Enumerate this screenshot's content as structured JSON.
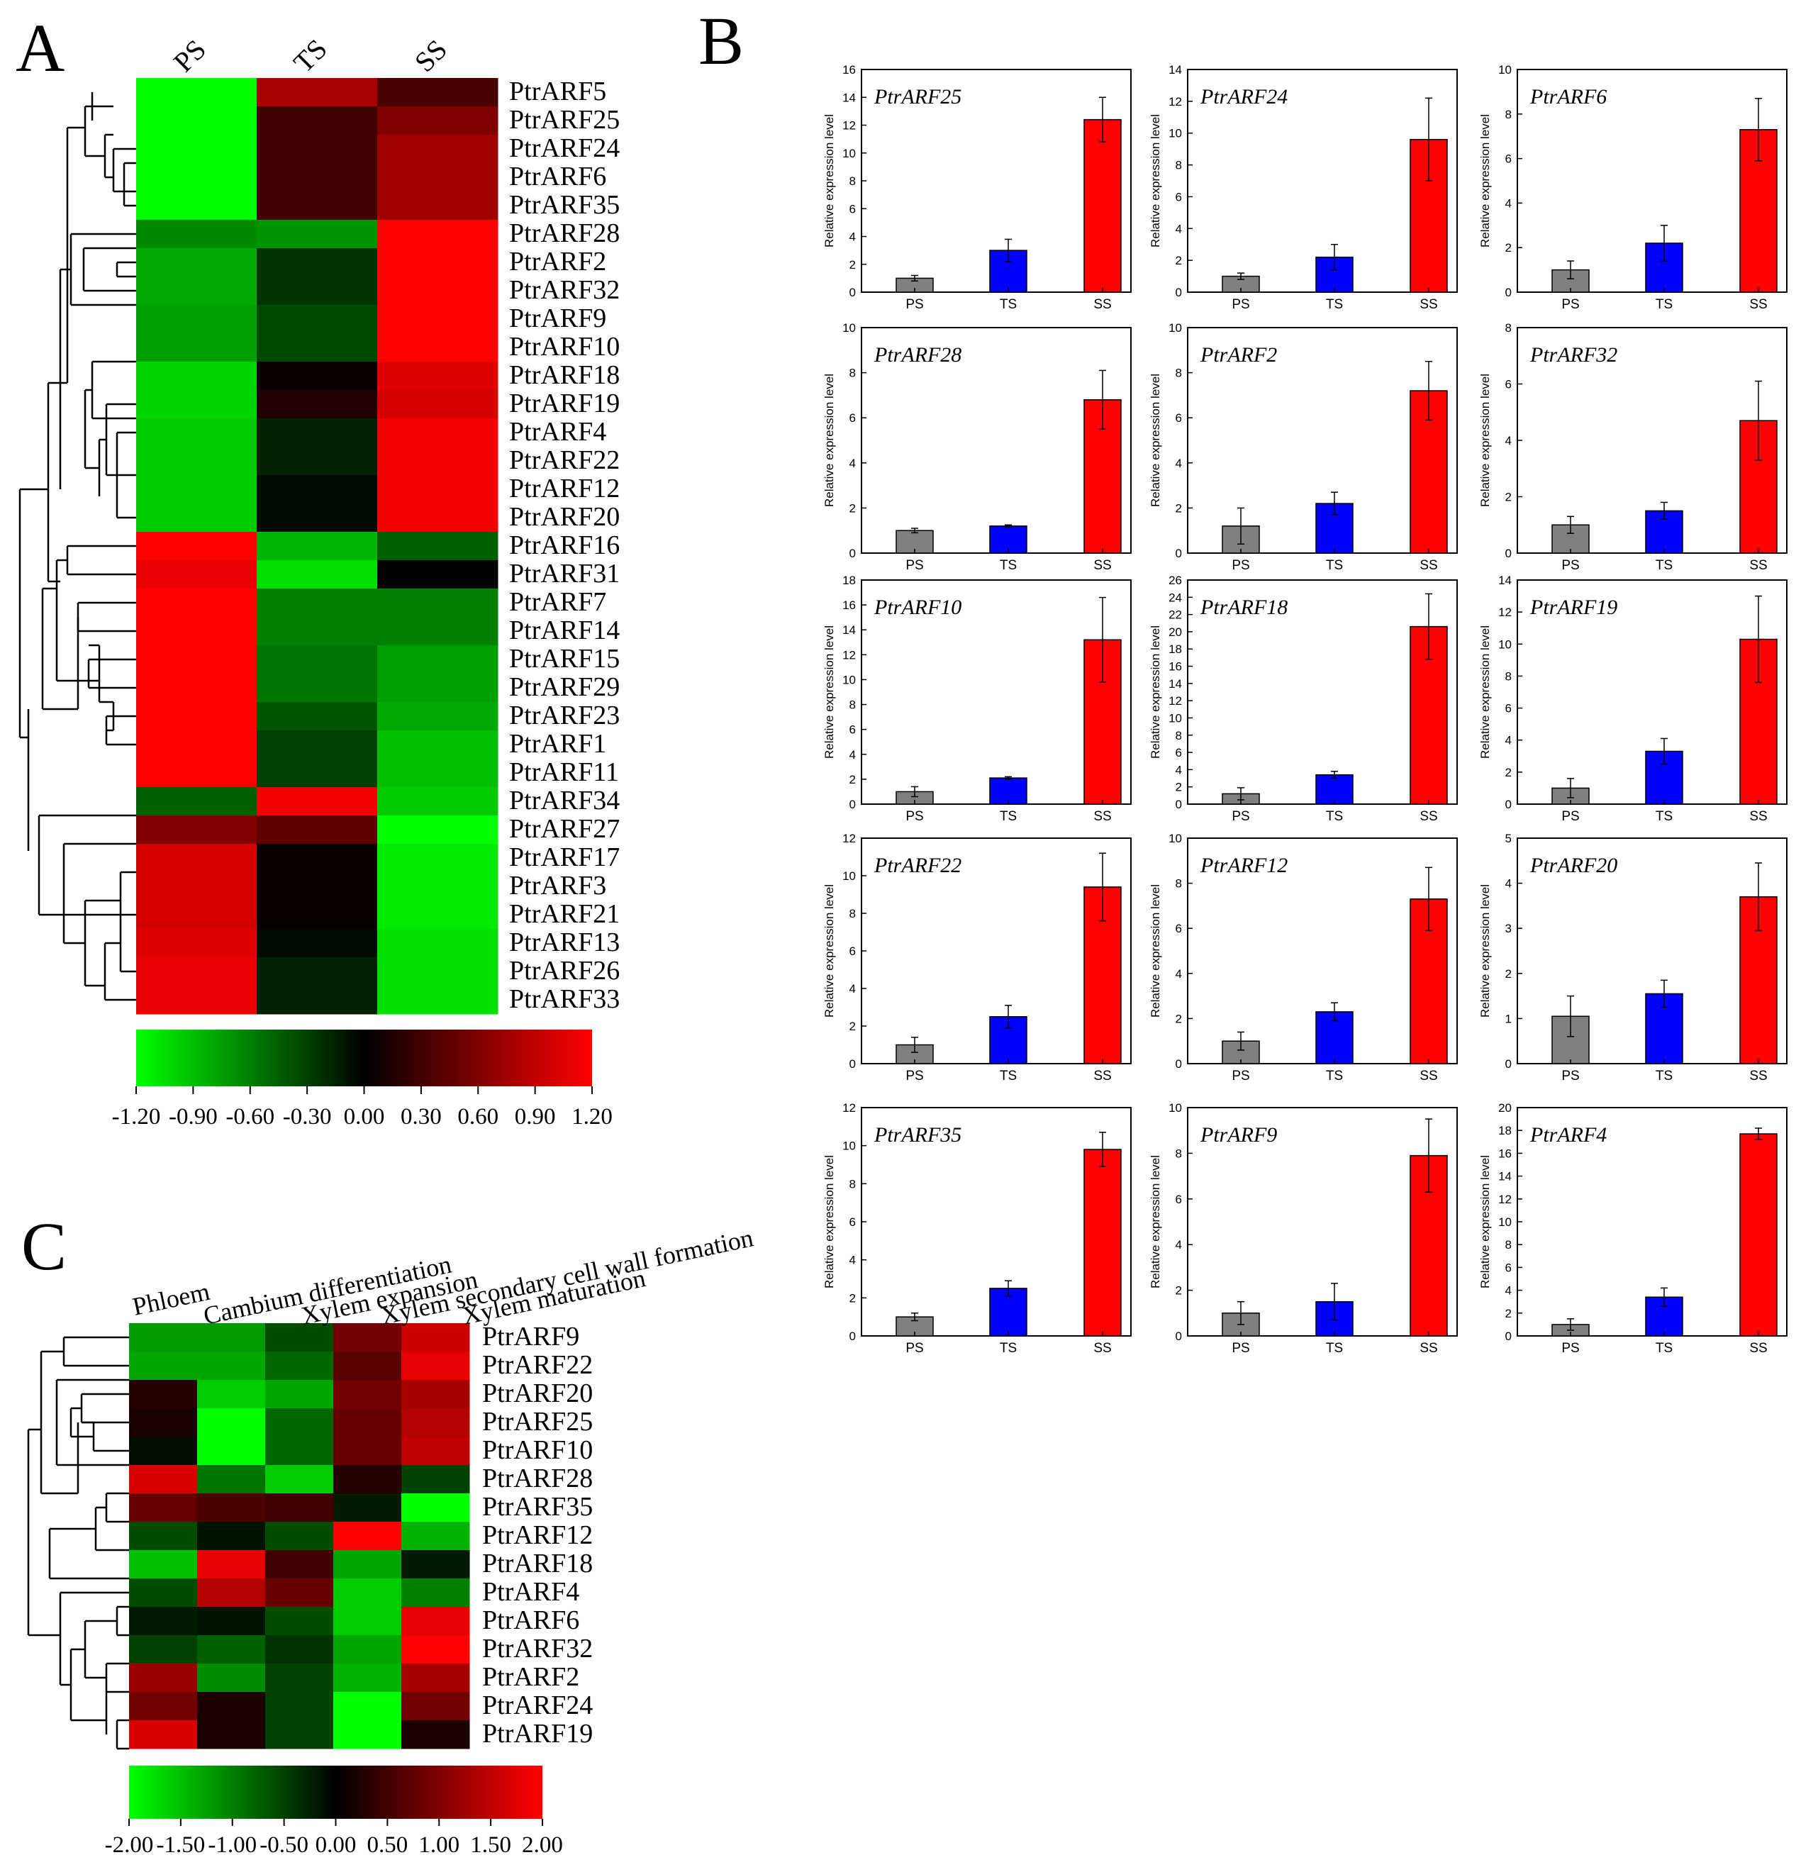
{
  "panels": {
    "A": "A",
    "B": "B",
    "C": "C"
  },
  "chart_data": [
    {
      "id": "A",
      "type": "heatmap",
      "columns": [
        "PS",
        "TS",
        "SS"
      ],
      "rows": [
        "PtrARF5",
        "PtrARF25",
        "PtrARF24",
        "PtrARF6",
        "PtrARF35",
        "PtrARF28",
        "PtrARF2",
        "PtrARF32",
        "PtrARF9",
        "PtrARF10",
        "PtrARF18",
        "PtrARF19",
        "PtrARF4",
        "PtrARF22",
        "PtrARF12",
        "PtrARF20",
        "PtrARF16",
        "PtrARF31",
        "PtrARF7",
        "PtrARF14",
        "PtrARF15",
        "PtrARF29",
        "PtrARF23",
        "PtrARF1",
        "PtrARF11",
        "PtrARF34",
        "PtrARF27",
        "PtrARF17",
        "PtrARF3",
        "PtrARF21",
        "PtrARF13",
        "PtrARF26",
        "PtrARF33"
      ],
      "values": [
        [
          -1.2,
          0.8,
          0.35
        ],
        [
          -1.2,
          0.3,
          0.6
        ],
        [
          -1.2,
          0.3,
          0.75
        ],
        [
          -1.2,
          0.3,
          0.75
        ],
        [
          -1.2,
          0.3,
          0.75
        ],
        [
          -0.65,
          -0.7,
          1.2
        ],
        [
          -0.8,
          -0.25,
          1.2
        ],
        [
          -0.8,
          -0.25,
          1.2
        ],
        [
          -0.75,
          -0.35,
          1.2
        ],
        [
          -0.75,
          -0.35,
          1.2
        ],
        [
          -1.0,
          0.05,
          1.05
        ],
        [
          -1.0,
          0.15,
          1.0
        ],
        [
          -0.95,
          -0.15,
          1.15
        ],
        [
          -0.95,
          -0.15,
          1.15
        ],
        [
          -0.95,
          -0.05,
          1.15
        ],
        [
          -0.95,
          -0.05,
          1.15
        ],
        [
          1.2,
          -0.85,
          -0.45
        ],
        [
          1.1,
          -1.05,
          0.0
        ],
        [
          1.2,
          -0.6,
          -0.6
        ],
        [
          1.2,
          -0.6,
          -0.6
        ],
        [
          1.2,
          -0.55,
          -0.75
        ],
        [
          1.2,
          -0.55,
          -0.75
        ],
        [
          1.2,
          -0.4,
          -0.8
        ],
        [
          1.2,
          -0.3,
          -0.9
        ],
        [
          1.2,
          -0.3,
          -0.9
        ],
        [
          -0.45,
          1.15,
          -0.95
        ],
        [
          0.6,
          0.45,
          -1.2
        ],
        [
          1.0,
          0.05,
          -1.1
        ],
        [
          1.0,
          0.05,
          -1.1
        ],
        [
          1.0,
          0.05,
          -1.1
        ],
        [
          1.05,
          -0.05,
          -1.05
        ],
        [
          1.1,
          -0.15,
          -1.05
        ],
        [
          1.1,
          -0.15,
          -1.05
        ]
      ],
      "colorbar": {
        "min": -1.2,
        "max": 1.2,
        "ticks": [
          "-1.20",
          "-0.90",
          "-0.60",
          "-0.30",
          "0.00",
          "0.30",
          "0.60",
          "0.90",
          "1.20"
        ],
        "colors": [
          "#00ff00",
          "#000000",
          "#ff0000"
        ]
      }
    },
    {
      "id": "B",
      "type": "bar",
      "categories": [
        "PS",
        "TS",
        "SS"
      ],
      "ylabel": "Relative expression level",
      "bar_colors": [
        "#808080",
        "#0000ff",
        "#ff0000"
      ],
      "subplots": [
        {
          "gene": "PtrARF25",
          "values": [
            1.0,
            3.0,
            12.4
          ],
          "errors": [
            0.2,
            0.8,
            1.6
          ],
          "ylim": [
            0,
            16
          ],
          "yticks": [
            0,
            2,
            4,
            6,
            8,
            10,
            12,
            14,
            16
          ]
        },
        {
          "gene": "PtrARF24",
          "values": [
            1.0,
            2.2,
            9.6
          ],
          "errors": [
            0.2,
            0.8,
            2.6
          ],
          "ylim": [
            0,
            14
          ],
          "yticks": [
            0,
            2,
            4,
            6,
            8,
            10,
            12,
            14
          ]
        },
        {
          "gene": "PtrARF6",
          "values": [
            1.0,
            2.2,
            7.3
          ],
          "errors": [
            0.4,
            0.8,
            1.4
          ],
          "ylim": [
            0,
            10
          ],
          "yticks": [
            0,
            2,
            4,
            6,
            8,
            10
          ]
        },
        {
          "gene": "PtrARF28",
          "values": [
            1.0,
            1.2,
            6.8
          ],
          "errors": [
            0.1,
            0.05,
            1.3
          ],
          "ylim": [
            0,
            10
          ],
          "yticks": [
            0,
            2,
            4,
            6,
            8,
            10
          ]
        },
        {
          "gene": "PtrARF2",
          "values": [
            1.2,
            2.2,
            7.2
          ],
          "errors": [
            0.8,
            0.5,
            1.3
          ],
          "ylim": [
            0,
            10
          ],
          "yticks": [
            0,
            2,
            4,
            6,
            8,
            10
          ]
        },
        {
          "gene": "PtrARF32",
          "values": [
            1.0,
            1.5,
            4.7
          ],
          "errors": [
            0.3,
            0.3,
            1.4
          ],
          "ylim": [
            0,
            8
          ],
          "yticks": [
            0,
            2,
            4,
            6,
            8
          ]
        },
        {
          "gene": "PtrARF10",
          "values": [
            1.0,
            2.1,
            13.2
          ],
          "errors": [
            0.4,
            0.1,
            3.4
          ],
          "ylim": [
            0,
            18
          ],
          "yticks": [
            0,
            2,
            4,
            6,
            8,
            10,
            12,
            14,
            16,
            18
          ]
        },
        {
          "gene": "PtrARF18",
          "values": [
            1.2,
            3.4,
            20.6
          ],
          "errors": [
            0.7,
            0.4,
            3.8
          ],
          "ylim": [
            0,
            26
          ],
          "yticks": [
            0,
            2,
            4,
            6,
            8,
            10,
            12,
            14,
            16,
            18,
            20,
            22,
            24,
            26
          ]
        },
        {
          "gene": "PtrARF19",
          "values": [
            1.0,
            3.3,
            10.3
          ],
          "errors": [
            0.6,
            0.8,
            2.7
          ],
          "ylim": [
            0,
            14
          ],
          "yticks": [
            0,
            2,
            4,
            6,
            8,
            10,
            12,
            14
          ]
        },
        {
          "gene": "PtrARF22",
          "values": [
            1.0,
            2.5,
            9.4
          ],
          "errors": [
            0.4,
            0.6,
            1.8
          ],
          "ylim": [
            0,
            12
          ],
          "yticks": [
            0,
            2,
            4,
            6,
            8,
            10,
            12
          ]
        },
        {
          "gene": "PtrARF12",
          "values": [
            1.0,
            2.3,
            7.3
          ],
          "errors": [
            0.4,
            0.4,
            1.4
          ],
          "ylim": [
            0,
            10
          ],
          "yticks": [
            0,
            2,
            4,
            6,
            8,
            10
          ]
        },
        {
          "gene": "PtrARF20",
          "values": [
            1.05,
            1.55,
            3.7
          ],
          "errors": [
            0.45,
            0.3,
            0.75
          ],
          "ylim": [
            0,
            5
          ],
          "yticks": [
            0,
            1,
            2,
            3,
            4,
            5
          ]
        },
        {
          "gene": "PtrARF35",
          "values": [
            1.0,
            2.5,
            9.8
          ],
          "errors": [
            0.2,
            0.4,
            0.9
          ],
          "ylim": [
            0,
            12
          ],
          "yticks": [
            0,
            2,
            4,
            6,
            8,
            10,
            12
          ]
        },
        {
          "gene": "PtrARF9",
          "values": [
            1.0,
            1.5,
            7.9
          ],
          "errors": [
            0.5,
            0.8,
            1.6
          ],
          "ylim": [
            0,
            10
          ],
          "yticks": [
            0,
            2,
            4,
            6,
            8,
            10
          ]
        },
        {
          "gene": "PtrARF4",
          "values": [
            1.0,
            3.4,
            17.7
          ],
          "errors": [
            0.5,
            0.8,
            0.5
          ],
          "ylim": [
            0,
            20
          ],
          "yticks": [
            0,
            2,
            4,
            6,
            8,
            10,
            12,
            14,
            16,
            18,
            20
          ]
        }
      ]
    },
    {
      "id": "C",
      "type": "heatmap",
      "columns": [
        "Phloem",
        "Cambium differentiation",
        "Xylem expansion",
        "Xylem secondary cell wall formation",
        "Xylem maturation"
      ],
      "rows": [
        "PtrARF9",
        "PtrARF22",
        "PtrARF20",
        "PtrARF25",
        "PtrARF10",
        "PtrARF28",
        "PtrARF35",
        "PtrARF12",
        "PtrARF18",
        "PtrARF4",
        "PtrARF6",
        "PtrARF32",
        "PtrARF2",
        "PtrARF24",
        "PtrARF19"
      ],
      "values": [
        [
          -1.2,
          -1.2,
          -0.6,
          0.9,
          1.6
        ],
        [
          -1.3,
          -1.3,
          -0.8,
          0.7,
          1.8
        ],
        [
          0.3,
          -1.6,
          -1.3,
          0.9,
          1.3
        ],
        [
          0.2,
          -2.0,
          -0.8,
          0.8,
          1.4
        ],
        [
          -0.1,
          -2.0,
          -0.8,
          0.8,
          1.5
        ],
        [
          1.7,
          -0.9,
          -1.6,
          0.3,
          -0.5
        ],
        [
          0.8,
          0.6,
          0.5,
          -0.2,
          -2.0
        ],
        [
          -0.6,
          -0.15,
          -0.6,
          2.0,
          -1.4
        ],
        [
          -1.5,
          1.8,
          0.5,
          -1.3,
          -0.2
        ],
        [
          -0.6,
          1.4,
          0.8,
          -1.6,
          -1.0
        ],
        [
          -0.2,
          -0.15,
          -0.6,
          -1.6,
          1.8
        ],
        [
          -0.5,
          -0.75,
          -0.4,
          -1.3,
          2.0
        ],
        [
          1.2,
          -1.1,
          -0.5,
          -1.4,
          1.3
        ],
        [
          0.9,
          0.2,
          -0.5,
          -2.0,
          0.9
        ],
        [
          1.7,
          0.2,
          -0.5,
          -2.0,
          0.2
        ]
      ],
      "colorbar": {
        "min": -2.0,
        "max": 2.0,
        "ticks": [
          "-2.00",
          "-1.50",
          "-1.00",
          "-0.50",
          "0.00",
          "0.50",
          "1.00",
          "1.50",
          "2.00"
        ],
        "colors": [
          "#00ff00",
          "#000000",
          "#ff0000"
        ]
      }
    }
  ]
}
